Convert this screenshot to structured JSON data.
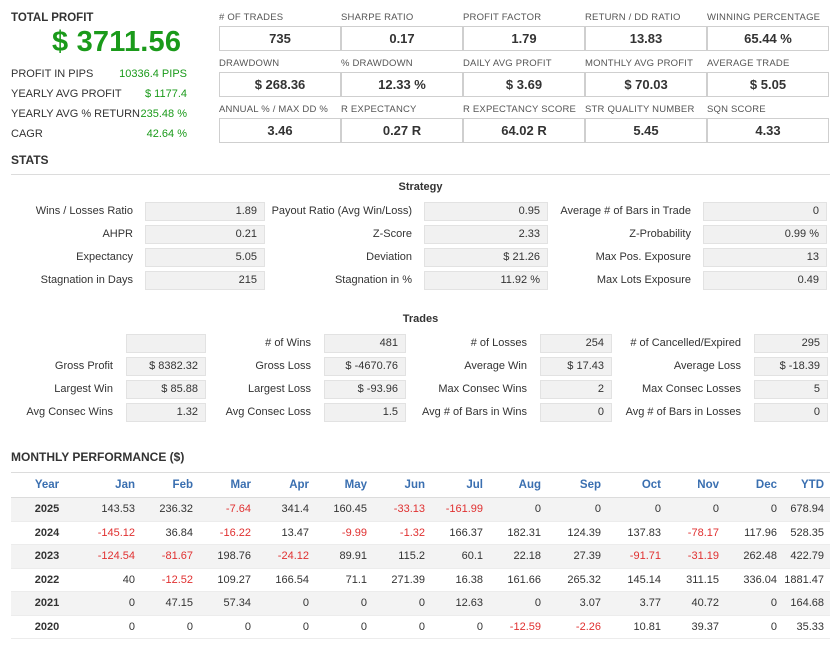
{
  "summary": {
    "total_profit_label": "TOTAL PROFIT",
    "total_profit_value": "$ 3711.56",
    "rows": [
      {
        "label": "PROFIT IN PIPS",
        "value": "10336.4 PIPS"
      },
      {
        "label": "YEARLY AVG PROFIT",
        "value": "$ 1177.4"
      },
      {
        "label": "YEARLY AVG % RETURN",
        "value": "235.48 %"
      },
      {
        "label": "CAGR",
        "value": "42.64 %"
      }
    ]
  },
  "metrics": [
    {
      "label": "# OF TRADES",
      "value": "735"
    },
    {
      "label": "SHARPE RATIO",
      "value": "0.17"
    },
    {
      "label": "PROFIT FACTOR",
      "value": "1.79"
    },
    {
      "label": "RETURN / DD RATIO",
      "value": "13.83"
    },
    {
      "label": "WINNING PERCENTAGE",
      "value": "65.44 %"
    },
    {
      "label": "DRAWDOWN",
      "value": "$ 268.36"
    },
    {
      "label": "% DRAWDOWN",
      "value": "12.33 %"
    },
    {
      "label": "DAILY AVG PROFIT",
      "value": "$ 3.69"
    },
    {
      "label": "MONTHLY AVG PROFIT",
      "value": "$ 70.03"
    },
    {
      "label": "AVERAGE TRADE",
      "value": "$ 5.05"
    },
    {
      "label": "ANNUAL % / MAX DD %",
      "value": "3.46"
    },
    {
      "label": "R EXPECTANCY",
      "value": "0.27 R"
    },
    {
      "label": "R EXPECTANCY SCORE",
      "value": "64.02 R"
    },
    {
      "label": "STR QUALITY NUMBER",
      "value": "5.45"
    },
    {
      "label": "SQN SCORE",
      "value": "4.33"
    }
  ],
  "stats_title": "STATS",
  "strategy": {
    "title": "Strategy",
    "rows": [
      [
        {
          "label": "Wins / Losses Ratio",
          "value": "1.89"
        },
        {
          "label": "Payout Ratio (Avg Win/Loss)",
          "value": "0.95"
        },
        {
          "label": "Average # of Bars in Trade",
          "value": "0"
        }
      ],
      [
        {
          "label": "AHPR",
          "value": "0.21"
        },
        {
          "label": "Z-Score",
          "value": "2.33"
        },
        {
          "label": "Z-Probability",
          "value": "0.99 %"
        }
      ],
      [
        {
          "label": "Expectancy",
          "value": "5.05"
        },
        {
          "label": "Deviation",
          "value": "$ 21.26"
        },
        {
          "label": "Max Pos. Exposure",
          "value": "13"
        }
      ],
      [
        {
          "label": "Stagnation in Days",
          "value": "215"
        },
        {
          "label": "Stagnation in %",
          "value": "11.92 %"
        },
        {
          "label": "Max Lots Exposure",
          "value": "0.49"
        }
      ]
    ]
  },
  "trades": {
    "title": "Trades",
    "rows": [
      [
        {
          "label": "",
          "value": ""
        },
        {
          "label": "# of Wins",
          "value": "481"
        },
        {
          "label": "# of Losses",
          "value": "254"
        },
        {
          "label": "# of Cancelled/Expired",
          "value": "295"
        }
      ],
      [
        {
          "label": "Gross Profit",
          "value": "$ 8382.32"
        },
        {
          "label": "Gross Loss",
          "value": "$ -4670.76"
        },
        {
          "label": "Average Win",
          "value": "$ 17.43"
        },
        {
          "label": "Average Loss",
          "value": "$ -18.39"
        }
      ],
      [
        {
          "label": "Largest Win",
          "value": "$ 85.88"
        },
        {
          "label": "Largest Loss",
          "value": "$ -93.96"
        },
        {
          "label": "Max Consec Wins",
          "value": "2"
        },
        {
          "label": "Max Consec Losses",
          "value": "5"
        }
      ],
      [
        {
          "label": "Avg Consec Wins",
          "value": "1.32"
        },
        {
          "label": "Avg Consec Loss",
          "value": "1.5"
        },
        {
          "label": "Avg # of Bars in Wins",
          "value": "0"
        },
        {
          "label": "Avg # of Bars in Losses",
          "value": "0"
        }
      ]
    ]
  },
  "monthly": {
    "title": "MONTHLY PERFORMANCE ($)",
    "headers": [
      "Year",
      "Jan",
      "Feb",
      "Mar",
      "Apr",
      "May",
      "Jun",
      "Jul",
      "Aug",
      "Sep",
      "Oct",
      "Nov",
      "Dec",
      "YTD"
    ],
    "rows": [
      [
        "2025",
        "143.53",
        "236.32",
        "-7.64",
        "341.4",
        "160.45",
        "-33.13",
        "-161.99",
        "0",
        "0",
        "0",
        "0",
        "0",
        "678.94"
      ],
      [
        "2024",
        "-145.12",
        "36.84",
        "-16.22",
        "13.47",
        "-9.99",
        "-1.32",
        "166.37",
        "182.31",
        "124.39",
        "137.83",
        "-78.17",
        "117.96",
        "528.35"
      ],
      [
        "2023",
        "-124.54",
        "-81.67",
        "198.76",
        "-24.12",
        "89.91",
        "115.2",
        "60.1",
        "22.18",
        "27.39",
        "-91.71",
        "-31.19",
        "262.48",
        "422.79"
      ],
      [
        "2022",
        "40",
        "-12.52",
        "109.27",
        "166.54",
        "71.1",
        "271.39",
        "16.38",
        "161.66",
        "265.32",
        "145.14",
        "311.15",
        "336.04",
        "1881.47"
      ],
      [
        "2021",
        "0",
        "47.15",
        "57.34",
        "0",
        "0",
        "0",
        "12.63",
        "0",
        "3.07",
        "3.77",
        "40.72",
        "0",
        "164.68"
      ],
      [
        "2020",
        "0",
        "0",
        "0",
        "0",
        "0",
        "0",
        "0",
        "-12.59",
        "-2.26",
        "10.81",
        "39.37",
        "0",
        "35.33"
      ]
    ]
  }
}
